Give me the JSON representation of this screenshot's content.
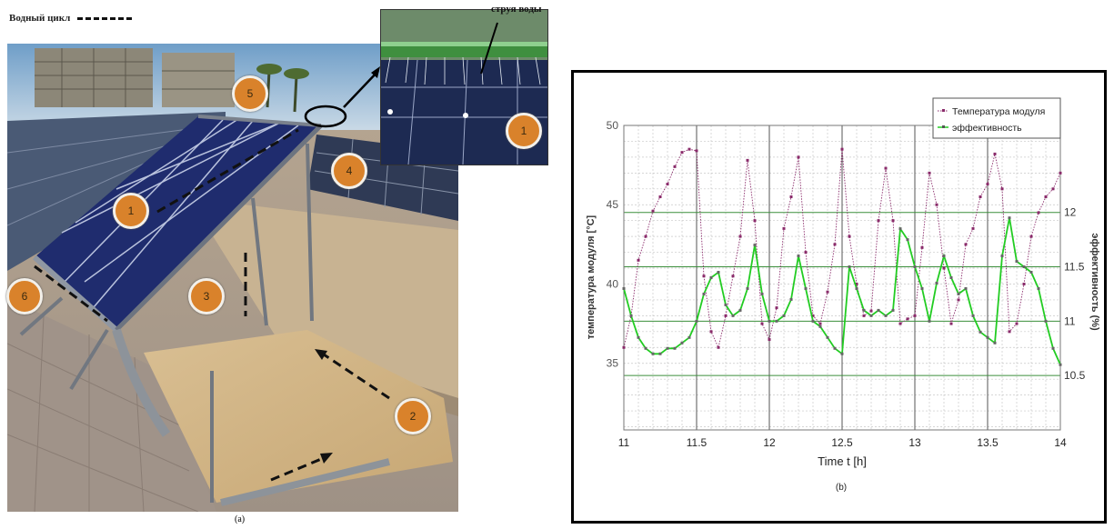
{
  "figure_a": {
    "legend_label": "Водный цикл",
    "inset_label": "струя воды",
    "caption": "(a)",
    "badges": [
      "1",
      "1",
      "2",
      "3",
      "4",
      "5",
      "6"
    ]
  },
  "chart_data": {
    "type": "line",
    "caption": "(b)",
    "xlabel": "Time t [h]",
    "ylabel_left": "температура модуля  [°C]",
    "ylabel_right": "эффективность (%)",
    "xlim": [
      11,
      14
    ],
    "xticks": [
      "11",
      "11.5",
      "12",
      "12.5",
      "13",
      "13.5",
      "14"
    ],
    "ylim_left": [
      30.8,
      50
    ],
    "yticks_left": [
      "35",
      "40",
      "45",
      "50"
    ],
    "ylim_right": [
      10.0,
      12.8
    ],
    "yticks_right": [
      "10.5",
      "11",
      "11.5",
      "12"
    ],
    "grid": true,
    "legend_position": "top-right",
    "legend": [
      "Температура модуля",
      "эффективность"
    ],
    "series": [
      {
        "name": "Температура модуля",
        "axis": "left",
        "color": "#8a2a6a",
        "x": [
          11.0,
          11.05,
          11.1,
          11.15,
          11.2,
          11.25,
          11.3,
          11.35,
          11.4,
          11.45,
          11.5,
          11.55,
          11.6,
          11.65,
          11.7,
          11.75,
          11.8,
          11.85,
          11.9,
          11.95,
          12.0,
          12.05,
          12.1,
          12.15,
          12.2,
          12.25,
          12.3,
          12.35,
          12.4,
          12.45,
          12.5,
          12.55,
          12.6,
          12.65,
          12.7,
          12.75,
          12.8,
          12.85,
          12.9,
          12.95,
          13.0,
          13.05,
          13.1,
          13.15,
          13.2,
          13.25,
          13.3,
          13.35,
          13.4,
          13.45,
          13.5,
          13.55,
          13.6,
          13.65,
          13.7,
          13.75,
          13.8,
          13.85,
          13.9,
          13.95,
          14.0
        ],
        "values": [
          36,
          38,
          41.5,
          43,
          44.6,
          45.5,
          46.3,
          47.4,
          48.3,
          48.5,
          48.4,
          40.5,
          37,
          36,
          38,
          40.5,
          43,
          47.8,
          44,
          37.5,
          36.5,
          38.5,
          43.5,
          45.5,
          48,
          42,
          38,
          37.5,
          39.5,
          42.5,
          48.5,
          43,
          40,
          38,
          38.3,
          44,
          47.3,
          44,
          37.5,
          37.8,
          38,
          42.3,
          47,
          45,
          41,
          37.5,
          39,
          42.5,
          43.5,
          45.5,
          46.3,
          48.2,
          46,
          37,
          37.5,
          40,
          43,
          44.5,
          45.5,
          46,
          47
        ]
      },
      {
        "name": "эффективность",
        "axis": "right",
        "color": "#22cc22",
        "x": [
          11.0,
          11.05,
          11.1,
          11.15,
          11.2,
          11.25,
          11.3,
          11.35,
          11.4,
          11.45,
          11.5,
          11.55,
          11.6,
          11.65,
          11.7,
          11.75,
          11.8,
          11.85,
          11.9,
          11.95,
          12.0,
          12.05,
          12.1,
          12.15,
          12.2,
          12.25,
          12.3,
          12.35,
          12.4,
          12.45,
          12.5,
          12.55,
          12.6,
          12.65,
          12.7,
          12.75,
          12.8,
          12.85,
          12.9,
          12.95,
          13.0,
          13.05,
          13.1,
          13.15,
          13.2,
          13.25,
          13.3,
          13.35,
          13.4,
          13.45,
          13.5,
          13.55,
          13.6,
          13.65,
          13.7,
          13.75,
          13.8,
          13.85,
          13.9,
          13.95,
          14.0
        ],
        "values": [
          11.3,
          11.05,
          10.85,
          10.75,
          10.7,
          10.7,
          10.75,
          10.75,
          10.8,
          10.85,
          11.0,
          11.25,
          11.4,
          11.45,
          11.15,
          11.05,
          11.1,
          11.3,
          11.7,
          11.25,
          11.0,
          11.0,
          11.05,
          11.2,
          11.6,
          11.3,
          11.0,
          10.95,
          10.85,
          10.75,
          10.7,
          11.5,
          11.3,
          11.1,
          11.05,
          11.1,
          11.05,
          11.1,
          11.85,
          11.75,
          11.5,
          11.3,
          11.0,
          11.35,
          11.6,
          11.4,
          11.25,
          11.3,
          11.05,
          10.9,
          10.85,
          10.8,
          11.6,
          11.95,
          11.55,
          11.5,
          11.45,
          11.3,
          11.0,
          10.75,
          10.6
        ]
      }
    ]
  }
}
